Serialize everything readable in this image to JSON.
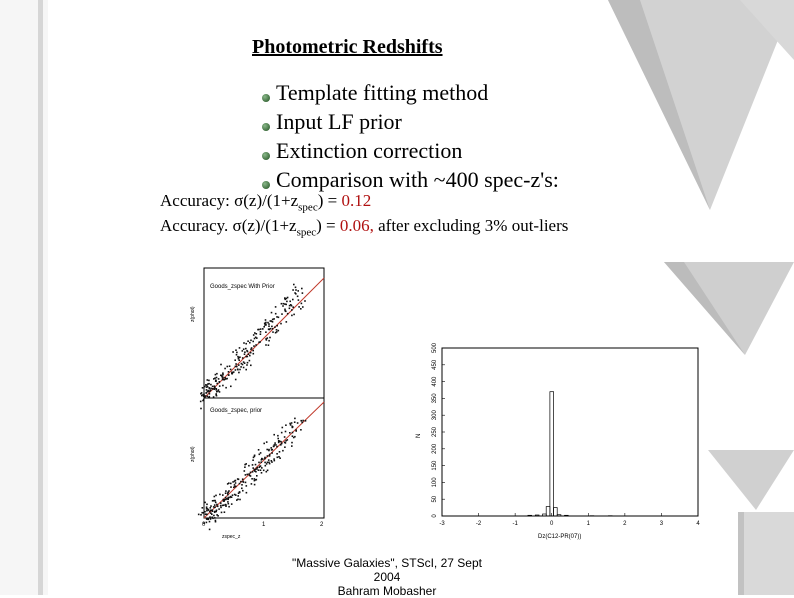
{
  "slide": {
    "title": "Photometric Redshifts",
    "bullets": [
      "Template fitting method",
      "Input LF prior",
      "Extinction correction",
      "Comparison with ~400 spec-z's:"
    ],
    "accuracy": [
      {
        "label": "Accuracy:",
        "sigma": "σ",
        "expr": "(z)/(1+z",
        "sub": "spec",
        "close": ") = ",
        "value": "0.12",
        "note": ""
      },
      {
        "label": "Accuracy.",
        "sigma": "σ",
        "expr": "(z)/(1+z",
        "sub": "spec",
        "close": ") = ",
        "value": "0.06,",
        "note": " after excluding 3% out-liers"
      }
    ],
    "footer": {
      "line1": "\"Massive Galaxies\", STScI, 27 Sept 2004",
      "line2": "Bahram Mobasher"
    },
    "colors": {
      "accent_red": "#b01010",
      "fit_line": "#c0392b",
      "bullet": "#2e6b2e",
      "deco_grey": "#c8c8c8"
    }
  },
  "chart_data": [
    {
      "type": "scatter",
      "title": "",
      "panels": [
        {
          "label": "Goods_zspec With Prior",
          "ylabel": "z(phot)",
          "xlabel": "",
          "xlim": [
            0,
            2
          ],
          "ylim": [
            0,
            2
          ]
        },
        {
          "label": "Goods_zspec, prior",
          "ylabel": "z(phot)",
          "xlabel": "zspec_z",
          "xlim": [
            0,
            2
          ],
          "ylim": [
            0,
            2
          ],
          "x_ticks": [
            "0",
            "1",
            "2"
          ]
        }
      ]
    },
    {
      "type": "bar",
      "title": "",
      "xlabel": "Dz(C12-PR(07))",
      "ylabel": "N",
      "xlim": [
        -3,
        4
      ],
      "ylim": [
        0,
        500
      ],
      "x_ticks": [
        "-3",
        "-2",
        "-1",
        "0",
        "1",
        "2",
        "3",
        "4"
      ],
      "y_ticks": [
        "0",
        "50",
        "100",
        "150",
        "200",
        "250",
        "300",
        "350",
        "400",
        "450",
        "500"
      ],
      "bins": [
        {
          "x": -0.6,
          "y": 2
        },
        {
          "x": -0.4,
          "y": 3
        },
        {
          "x": -0.2,
          "y": 6
        },
        {
          "x": -0.1,
          "y": 28
        },
        {
          "x": 0.0,
          "y": 370
        },
        {
          "x": 0.1,
          "y": 25
        },
        {
          "x": 0.2,
          "y": 4
        },
        {
          "x": 0.4,
          "y": 2
        },
        {
          "x": 1.1,
          "y": 1
        },
        {
          "x": 1.6,
          "y": 1
        }
      ]
    }
  ]
}
